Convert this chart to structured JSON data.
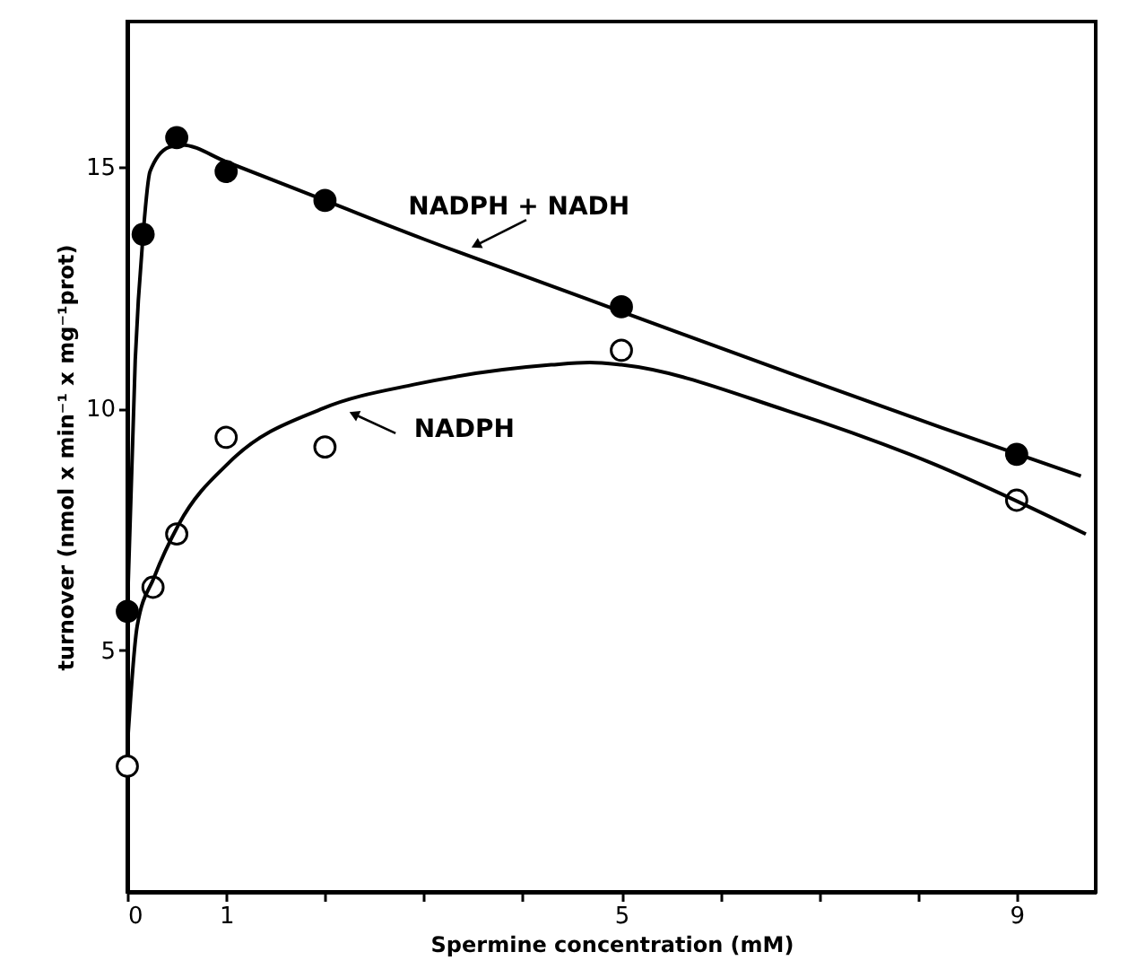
{
  "chart_data": {
    "type": "scatter",
    "xlabel": "Spermine concentration (mM)",
    "ylabel": "turnover (nmol x min⁻¹ x mg⁻¹prot)",
    "xlim": [
      0,
      9.8
    ],
    "ylim": [
      0,
      18
    ],
    "xticks": [
      {
        "value": 0,
        "label": "0"
      },
      1,
      {
        "value": 2,
        "label": null
      },
      {
        "value": 3,
        "label": null
      },
      {
        "value": 4,
        "label": null
      },
      5,
      {
        "value": 6,
        "label": null
      },
      {
        "value": 7,
        "label": null
      },
      {
        "value": 8,
        "label": null
      },
      9
    ],
    "yticks": [
      5,
      10,
      15
    ],
    "grid": false,
    "series": [
      {
        "color": "#000000",
        "marker": "circle",
        "x": [
          0,
          0.16,
          0.5,
          1,
          2,
          5,
          9
        ],
        "values": [
          5.8,
          13.6,
          15.6,
          14.9,
          14.3,
          12.1,
          9.05
        ]
      },
      {
        "color": "#000000",
        "marker": "circle",
        "x": [
          0,
          0.26,
          0.5,
          1,
          2,
          5,
          9
        ],
        "values": [
          2.6,
          6.3,
          7.4,
          9.4,
          9.2,
          11.2,
          8.1
        ]
      },
      {
        "type": "line",
        "color": "#000000",
        "marker": "none",
        "line_style": "solid",
        "x": [
          0,
          0.08,
          0.16,
          0.23,
          0.42,
          0.55,
          1,
          2,
          3,
          3.93,
          5,
          6.74,
          8.24,
          9.65
        ],
        "values": [
          5.8,
          11.0,
          13.6,
          14.9,
          15.4,
          15.45,
          15.1,
          14.3,
          13.5,
          12.8,
          12.0,
          10.7,
          9.6,
          8.6
        ]
      },
      {
        "type": "line",
        "color": "#000000",
        "marker": "none",
        "line_style": "solid",
        "x": [
          0,
          0.1,
          0.27,
          0.52,
          1.04,
          1.98,
          2.92,
          4.29,
          4.68,
          5,
          6.68,
          8.1,
          9.7
        ],
        "values": [
          3.0,
          5.5,
          6.5,
          7.6,
          8.9,
          10.0,
          10.5,
          10.9,
          10.95,
          10.9,
          9.95,
          8.9,
          7.4
        ]
      }
    ],
    "annotations": [
      "NADPH + NADH",
      "NADPH"
    ]
  }
}
